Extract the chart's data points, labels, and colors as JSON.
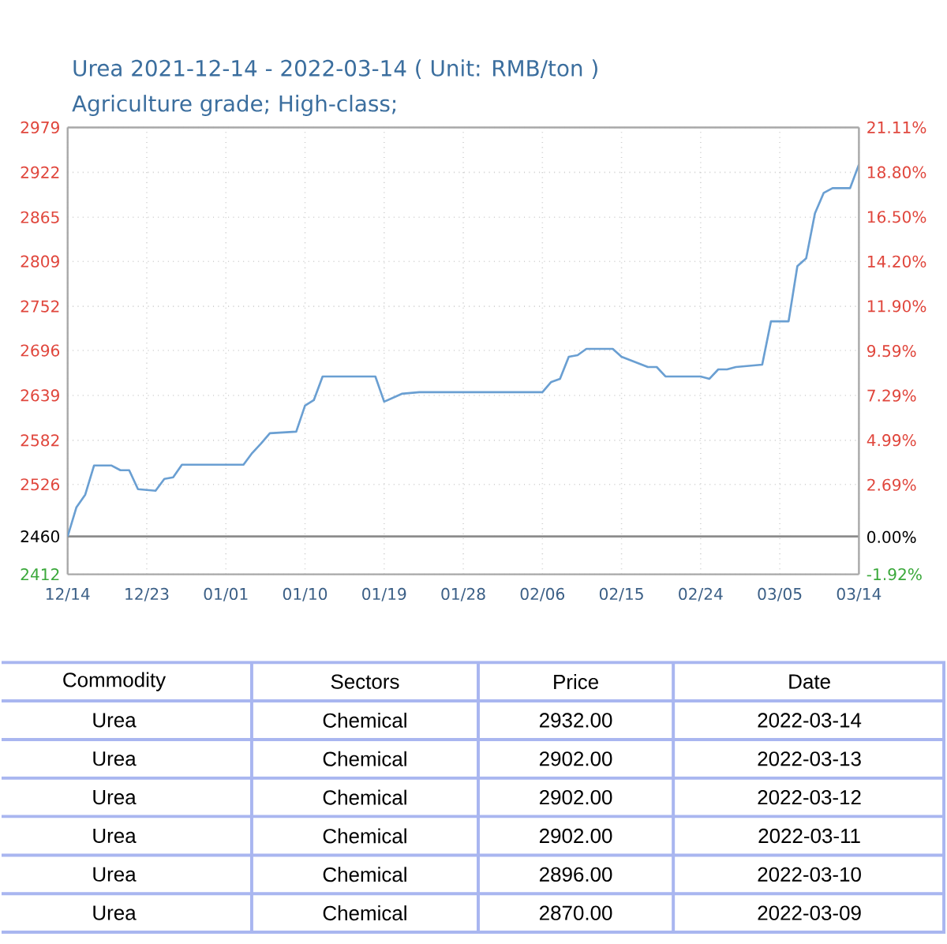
{
  "chart_data": [
    {
      "type": "line",
      "title": "Urea 2021-12-14 - 2022-03-14    ( Unit: RMB/ton )",
      "subtitle": "Agriculture grade; High-class;",
      "x": [
        "2021-12-14",
        "2021-12-15",
        "2021-12-16",
        "2021-12-17",
        "2021-12-19",
        "2021-12-20",
        "2021-12-21",
        "2021-12-22",
        "2021-12-24",
        "2021-12-25",
        "2021-12-26",
        "2021-12-27",
        "2022-01-03",
        "2022-01-04",
        "2022-01-05",
        "2022-01-06",
        "2022-01-09",
        "2022-01-10",
        "2022-01-11",
        "2022-01-12",
        "2022-01-18",
        "2022-01-19",
        "2022-01-21",
        "2022-01-23",
        "2022-02-06",
        "2022-02-07",
        "2022-02-08",
        "2022-02-09",
        "2022-02-10",
        "2022-02-11",
        "2022-02-14",
        "2022-02-15",
        "2022-02-18",
        "2022-02-19",
        "2022-02-20",
        "2022-02-24",
        "2022-02-25",
        "2022-02-26",
        "2022-02-27",
        "2022-02-28",
        "2022-03-03",
        "2022-03-04",
        "2022-03-06",
        "2022-03-07",
        "2022-03-08",
        "2022-03-09",
        "2022-03-10",
        "2022-03-11",
        "2022-03-12",
        "2022-03-13",
        "2022-03-14"
      ],
      "series": [
        {
          "color": "#6a9fd2",
          "values": [
            2460,
            2497,
            2513,
            2550,
            2550,
            2544,
            2544,
            2520,
            2518,
            2533,
            2535,
            2551,
            2551,
            2566,
            2578,
            2591,
            2593,
            2626,
            2633,
            2663,
            2663,
            2631,
            2641,
            2643,
            2643,
            2656,
            2660,
            2688,
            2690,
            2698,
            2698,
            2688,
            2675,
            2675,
            2663,
            2663,
            2660,
            2672,
            2672,
            2675,
            2678,
            2733,
            2733,
            2803,
            2813,
            2870,
            2896,
            2902,
            2902,
            2902,
            2932
          ]
        }
      ],
      "xlim": [
        "2021-12-14",
        "2022-03-14"
      ],
      "xticks": [
        {
          "value": "2021-12-14",
          "label": "12/14"
        },
        {
          "value": "2021-12-23",
          "label": "12/23"
        },
        {
          "value": "2022-01-01",
          "label": "01/01"
        },
        {
          "value": "2022-01-10",
          "label": "01/10"
        },
        {
          "value": "2022-01-19",
          "label": "01/19"
        },
        {
          "value": "2022-01-28",
          "label": "01/28"
        },
        {
          "value": "2022-02-06",
          "label": "02/06"
        },
        {
          "value": "2022-02-15",
          "label": "02/15"
        },
        {
          "value": "2022-02-24",
          "label": "02/24"
        },
        {
          "value": "2022-03-05",
          "label": "03/05"
        },
        {
          "value": "2022-03-14",
          "label": "03/14"
        }
      ],
      "ylim": [
        2412,
        2979
      ],
      "yticks": [
        2412,
        2460,
        2526,
        2582,
        2639,
        2696,
        2752,
        2809,
        2865,
        2922,
        2979
      ],
      "y2lim": [
        -1.92,
        21.11
      ],
      "y2ticks": [
        {
          "value": -1.92,
          "label": "-1.92%"
        },
        {
          "value": 0,
          "label": "0.00%"
        },
        {
          "value": 2.69,
          "label": "2.69%"
        },
        {
          "value": 4.99,
          "label": "4.99%"
        },
        {
          "value": 7.29,
          "label": "7.29%"
        },
        {
          "value": 9.59,
          "label": "9.59%"
        },
        {
          "value": 11.9,
          "label": "11.90%"
        },
        {
          "value": 14.2,
          "label": "14.20%"
        },
        {
          "value": 16.5,
          "label": "16.50%"
        },
        {
          "value": 18.8,
          "label": "18.80%"
        },
        {
          "value": 21.11,
          "label": "21.11%"
        }
      ],
      "ref_lines": [
        {
          "axis": "y",
          "value": 2460,
          "color": "#8c8c8c"
        }
      ],
      "grid": true
    },
    {
      "type": "other",
      "annotations": [
        "Commodity",
        "Sectors",
        "Price",
        "Date",
        "Urea",
        "Chemical",
        "2932.00",
        "2022-03-14",
        "Urea",
        "Chemical",
        "2902.00",
        "2022-03-13",
        "Urea",
        "Chemical",
        "2902.00",
        "2022-03-12",
        "Urea",
        "Chemical",
        "2902.00",
        "2022-03-11",
        "Urea",
        "Chemical",
        "2896.00",
        "2022-03-10",
        "Urea",
        "Chemical",
        "2870.00",
        "2022-03-09"
      ]
    }
  ]
}
